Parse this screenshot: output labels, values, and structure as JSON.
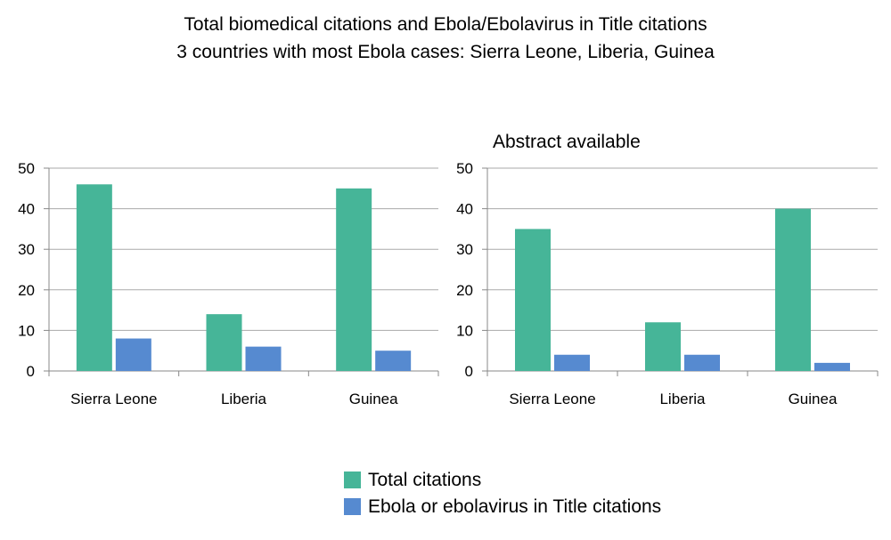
{
  "title": "Total biomedical citations and Ebola/Ebolavirus in Title citations",
  "subtitle": "3 countries with most Ebola cases: Sierra Leone, Liberia, Guinea",
  "colors": {
    "total": "#46b598",
    "title": "#568ad0",
    "axis": "#888888",
    "grid": "#aaaaaa"
  },
  "legend": [
    {
      "name": "Total citations",
      "color": "#46b598"
    },
    {
      "name": "Ebola or ebolavirus in Title citations",
      "color": "#568ad0"
    }
  ],
  "chart_data": [
    {
      "type": "bar",
      "title": "",
      "categories": [
        "Sierra Leone",
        "Liberia",
        "Guinea"
      ],
      "ylim": [
        0,
        50
      ],
      "yticks": [
        0,
        10,
        20,
        30,
        40,
        50
      ],
      "grid": true,
      "legend_position": "bottom-center",
      "series": [
        {
          "name": "Total citations",
          "values": [
            46,
            14,
            45
          ]
        },
        {
          "name": "Ebola or ebolavirus in Title citations",
          "values": [
            8,
            6,
            5
          ]
        }
      ]
    },
    {
      "type": "bar",
      "title": "Abstract available",
      "categories": [
        "Sierra Leone",
        "Liberia",
        "Guinea"
      ],
      "ylim": [
        0,
        50
      ],
      "yticks": [
        0,
        10,
        20,
        30,
        40,
        50
      ],
      "grid": true,
      "legend_position": "bottom-center",
      "series": [
        {
          "name": "Total citations",
          "values": [
            35,
            12,
            40
          ]
        },
        {
          "name": "Ebola or ebolavirus in Title citations",
          "values": [
            4,
            4,
            2
          ]
        }
      ]
    }
  ]
}
